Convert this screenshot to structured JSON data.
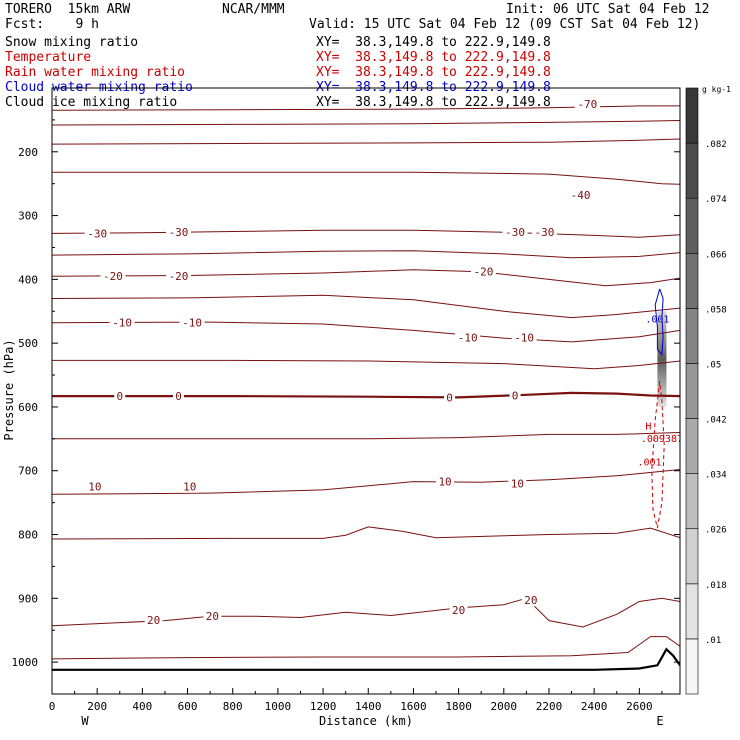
{
  "header": {
    "model": "TORERO  15km ARW",
    "center": "NCAR/MMM",
    "init": "Init: 06 UTC Sat 04 Feb 12",
    "fcst": "Fcst:    9 h",
    "valid": "Valid: 15 UTC Sat 04 Feb 12 (09 CST Sat 04 Feb 12)",
    "fields": [
      {
        "label": "Snow mixing ratio",
        "xy": "XY=  38.3,149.8 to 222.9,149.8",
        "color": "#000000"
      },
      {
        "label": "Temperature",
        "xy": "XY=  38.3,149.8 to 222.9,149.8",
        "color": "#cc0000"
      },
      {
        "label": "Rain water mixing ratio",
        "xy": "XY=  38.3,149.8 to 222.9,149.8",
        "color": "#cc0000"
      },
      {
        "label": "Cloud water mixing ratio",
        "xy": "XY=  38.3,149.8 to 222.9,149.8",
        "color": "#0000cc"
      },
      {
        "label": "Cloud ice mixing ratio",
        "xy": "XY=  38.3,149.8 to 222.9,149.8",
        "color": "#000000"
      }
    ]
  },
  "chart_data": {
    "type": "cross-section contour",
    "xlabel": "Distance (km)",
    "ylabel": "Pressure (hPa)",
    "xlim": [
      0,
      2780
    ],
    "ylim": [
      1050,
      100
    ],
    "x_ticks": [
      0,
      200,
      400,
      600,
      800,
      1000,
      1200,
      1400,
      1600,
      1800,
      2000,
      2200,
      2400,
      2600
    ],
    "y_ticks": [
      200,
      300,
      400,
      500,
      600,
      700,
      800,
      900,
      1000
    ],
    "left_end": "W",
    "right_end": "E",
    "colorbar": {
      "unit": "g kg-1",
      "ticks": [
        ".01",
        ".018",
        ".026",
        ".034",
        ".042",
        ".05",
        ".058",
        ".066",
        ".074",
        ".082"
      ]
    },
    "temperature_labels": [
      {
        "text": "-70",
        "x": 2370,
        "p": 125
      },
      {
        "text": "-40",
        "x": 2340,
        "p": 268
      },
      {
        "text": "-30",
        "x": 200,
        "p": 328
      },
      {
        "text": "-30",
        "x": 560,
        "p": 326
      },
      {
        "text": "-30",
        "x": 2050,
        "p": 326
      },
      {
        "text": "-30",
        "x": 2180,
        "p": 326
      },
      {
        "text": "-20",
        "x": 270,
        "p": 395
      },
      {
        "text": "-20",
        "x": 560,
        "p": 395
      },
      {
        "text": "-20",
        "x": 1910,
        "p": 388
      },
      {
        "text": "-10",
        "x": 310,
        "p": 468
      },
      {
        "text": "-10",
        "x": 620,
        "p": 468
      },
      {
        "text": "-10",
        "x": 1840,
        "p": 491
      },
      {
        "text": "-10",
        "x": 2090,
        "p": 491
      },
      {
        "text": "0",
        "x": 300,
        "p": 583
      },
      {
        "text": "0",
        "x": 560,
        "p": 583
      },
      {
        "text": "0",
        "x": 1760,
        "p": 585
      },
      {
        "text": "0",
        "x": 2050,
        "p": 582
      },
      {
        "text": "10",
        "x": 190,
        "p": 725
      },
      {
        "text": "10",
        "x": 610,
        "p": 725
      },
      {
        "text": "10",
        "x": 1740,
        "p": 717
      },
      {
        "text": "10",
        "x": 2060,
        "p": 720
      },
      {
        "text": "20",
        "x": 450,
        "p": 934
      },
      {
        "text": "20",
        "x": 710,
        "p": 928
      },
      {
        "text": "20",
        "x": 1800,
        "p": 918
      },
      {
        "text": "20",
        "x": 2120,
        "p": 903
      }
    ],
    "temperature_contours": [
      {
        "level": "-70",
        "points": [
          [
            0,
            135
          ],
          [
            800,
            134
          ],
          [
            1600,
            133
          ],
          [
            2200,
            131
          ],
          [
            2600,
            128
          ],
          [
            2780,
            128
          ]
        ]
      },
      {
        "level": "-60",
        "points": [
          [
            0,
            158
          ],
          [
            800,
            157
          ],
          [
            1600,
            156
          ],
          [
            2200,
            154
          ],
          [
            2600,
            152
          ],
          [
            2780,
            151
          ]
        ]
      },
      {
        "level": "-50",
        "points": [
          [
            0,
            188
          ],
          [
            800,
            187
          ],
          [
            1600,
            186
          ],
          [
            2200,
            185
          ],
          [
            2600,
            182
          ],
          [
            2780,
            180
          ]
        ]
      },
      {
        "level": "-40",
        "points": [
          [
            0,
            232
          ],
          [
            800,
            232
          ],
          [
            1600,
            232
          ],
          [
            2200,
            235
          ],
          [
            2500,
            243
          ],
          [
            2700,
            250
          ],
          [
            2780,
            251
          ]
        ]
      },
      {
        "level": "-30",
        "points": [
          [
            0,
            328
          ],
          [
            400,
            327
          ],
          [
            800,
            325
          ],
          [
            1200,
            323
          ],
          [
            1600,
            323
          ],
          [
            2000,
            326
          ],
          [
            2400,
            331
          ],
          [
            2600,
            334
          ],
          [
            2780,
            330
          ]
        ]
      },
      {
        "level": "-25",
        "points": [
          [
            0,
            362
          ],
          [
            600,
            360
          ],
          [
            1200,
            356
          ],
          [
            1600,
            355
          ],
          [
            2000,
            360
          ],
          [
            2300,
            366
          ],
          [
            2600,
            364
          ],
          [
            2780,
            358
          ]
        ]
      },
      {
        "level": "-20",
        "points": [
          [
            0,
            395
          ],
          [
            600,
            394
          ],
          [
            1200,
            390
          ],
          [
            1600,
            385
          ],
          [
            1900,
            388
          ],
          [
            2200,
            400
          ],
          [
            2450,
            410
          ],
          [
            2650,
            405
          ],
          [
            2780,
            398
          ]
        ]
      },
      {
        "level": "-15",
        "points": [
          [
            0,
            430
          ],
          [
            600,
            429
          ],
          [
            1200,
            425
          ],
          [
            1600,
            432
          ],
          [
            2000,
            450
          ],
          [
            2300,
            460
          ],
          [
            2500,
            455
          ],
          [
            2780,
            445
          ]
        ]
      },
      {
        "level": "-10",
        "points": [
          [
            0,
            468
          ],
          [
            700,
            467
          ],
          [
            1200,
            470
          ],
          [
            1600,
            480
          ],
          [
            2000,
            492
          ],
          [
            2300,
            498
          ],
          [
            2600,
            490
          ],
          [
            2780,
            480
          ]
        ]
      },
      {
        "level": "-5",
        "points": [
          [
            0,
            527
          ],
          [
            800,
            527
          ],
          [
            1400,
            528
          ],
          [
            2000,
            532
          ],
          [
            2400,
            540
          ],
          [
            2600,
            535
          ],
          [
            2780,
            528
          ]
        ]
      },
      {
        "level": "0",
        "points": [
          [
            0,
            583
          ],
          [
            800,
            583
          ],
          [
            1400,
            584
          ],
          [
            1800,
            585
          ],
          [
            2100,
            581
          ],
          [
            2300,
            578
          ],
          [
            2500,
            579
          ],
          [
            2650,
            582
          ],
          [
            2780,
            583
          ]
        ]
      },
      {
        "level": "5",
        "points": [
          [
            0,
            650
          ],
          [
            800,
            650
          ],
          [
            1400,
            650
          ],
          [
            1800,
            648
          ],
          [
            2200,
            643
          ],
          [
            2500,
            643
          ],
          [
            2780,
            640
          ]
        ]
      },
      {
        "level": "10",
        "points": [
          [
            0,
            737
          ],
          [
            700,
            735
          ],
          [
            1200,
            730
          ],
          [
            1600,
            717
          ],
          [
            1900,
            718
          ],
          [
            2200,
            714
          ],
          [
            2500,
            708
          ],
          [
            2780,
            698
          ]
        ]
      },
      {
        "level": "15",
        "points": [
          [
            0,
            807
          ],
          [
            800,
            806
          ],
          [
            1200,
            806
          ],
          [
            1300,
            801
          ],
          [
            1400,
            788
          ],
          [
            1550,
            795
          ],
          [
            1700,
            805
          ],
          [
            2200,
            800
          ],
          [
            2500,
            798
          ],
          [
            2650,
            790
          ],
          [
            2780,
            805
          ]
        ]
      },
      {
        "level": "20",
        "points": [
          [
            0,
            943
          ],
          [
            500,
            935
          ],
          [
            700,
            928
          ],
          [
            900,
            928
          ],
          [
            1100,
            930
          ],
          [
            1300,
            922
          ],
          [
            1500,
            927
          ],
          [
            1800,
            915
          ],
          [
            2000,
            910
          ],
          [
            2100,
            900
          ],
          [
            2200,
            935
          ],
          [
            2350,
            945
          ],
          [
            2500,
            925
          ],
          [
            2600,
            905
          ],
          [
            2700,
            900
          ],
          [
            2780,
            905
          ]
        ]
      },
      {
        "level": "25",
        "points": [
          [
            0,
            995
          ],
          [
            600,
            993
          ],
          [
            1200,
            992
          ],
          [
            1800,
            992
          ],
          [
            2300,
            990
          ],
          [
            2550,
            985
          ],
          [
            2650,
            960
          ],
          [
            2720,
            960
          ],
          [
            2780,
            975
          ]
        ]
      }
    ],
    "terrain": [
      [
        0,
        1012
      ],
      [
        1000,
        1012
      ],
      [
        2000,
        1012
      ],
      [
        2400,
        1012
      ],
      [
        2600,
        1010
      ],
      [
        2680,
        1005
      ],
      [
        2720,
        980
      ],
      [
        2750,
        990
      ],
      [
        2780,
        1005
      ]
    ],
    "cloud_water_contour": {
      "label": ".001",
      "points": [
        [
          2690,
          415
        ],
        [
          2670,
          440
        ],
        [
          2680,
          475
        ],
        [
          2680,
          510
        ],
        [
          2700,
          518
        ],
        [
          2705,
          490
        ],
        [
          2700,
          460
        ],
        [
          2705,
          430
        ],
        [
          2690,
          415
        ]
      ]
    },
    "rain_contour": {
      "label": ".001",
      "points": [
        [
          2690,
          560
        ],
        [
          2670,
          620
        ],
        [
          2655,
          700
        ],
        [
          2660,
          760
        ],
        [
          2680,
          790
        ],
        [
          2700,
          750
        ],
        [
          2710,
          660
        ],
        [
          2700,
          590
        ],
        [
          2690,
          560
        ]
      ]
    },
    "rain_max": {
      "symbol": "H",
      "value": ".009387",
      "x": 2700,
      "p": 652
    }
  }
}
